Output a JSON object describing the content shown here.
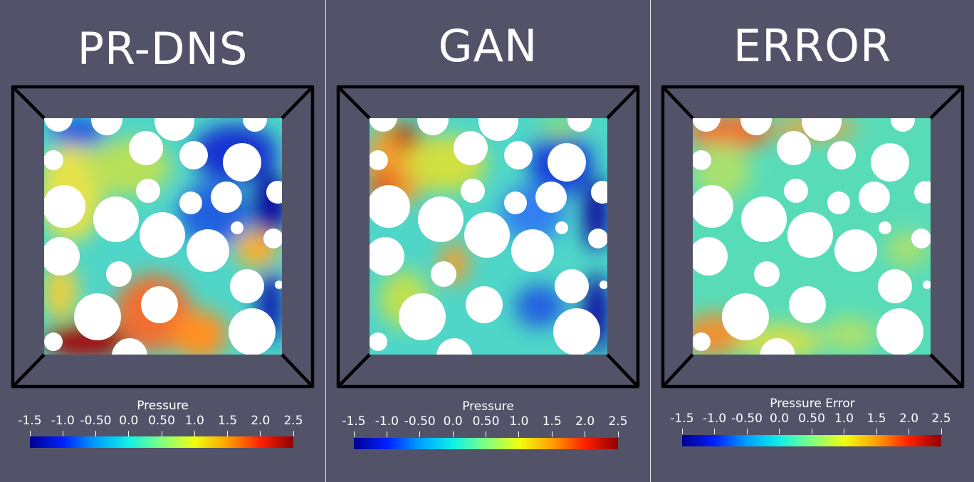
{
  "panels": [
    {
      "title": "PR-DNS",
      "colorbar_title": "Pressure",
      "ticks": [
        "-1.5",
        "-1.0",
        "-0.50",
        "0.0",
        "0.50",
        "1.0",
        "1.5",
        "2.0",
        "2.5"
      ]
    },
    {
      "title": "GAN",
      "colorbar_title": "Pressure",
      "ticks": [
        "-1.5",
        "-1.0",
        "-0.50",
        "0.0",
        "0.50",
        "1.0",
        "1.5",
        "2.0",
        "2.5"
      ]
    },
    {
      "title": "ERROR",
      "colorbar_title": "Pressure Error",
      "ticks": [
        "-1.5",
        "-1.0",
        "-0.50",
        "0.0",
        "0.50",
        "1.0",
        "1.5",
        "2.0",
        "2.5"
      ]
    }
  ],
  "colors": {
    "background": "#525369",
    "colormap": [
      "#00008f",
      "#0020ff",
      "#00a0ff",
      "#10f0e8",
      "#80ff80",
      "#f0ff10",
      "#ffa000",
      "#ff2000",
      "#8f0000"
    ]
  }
}
